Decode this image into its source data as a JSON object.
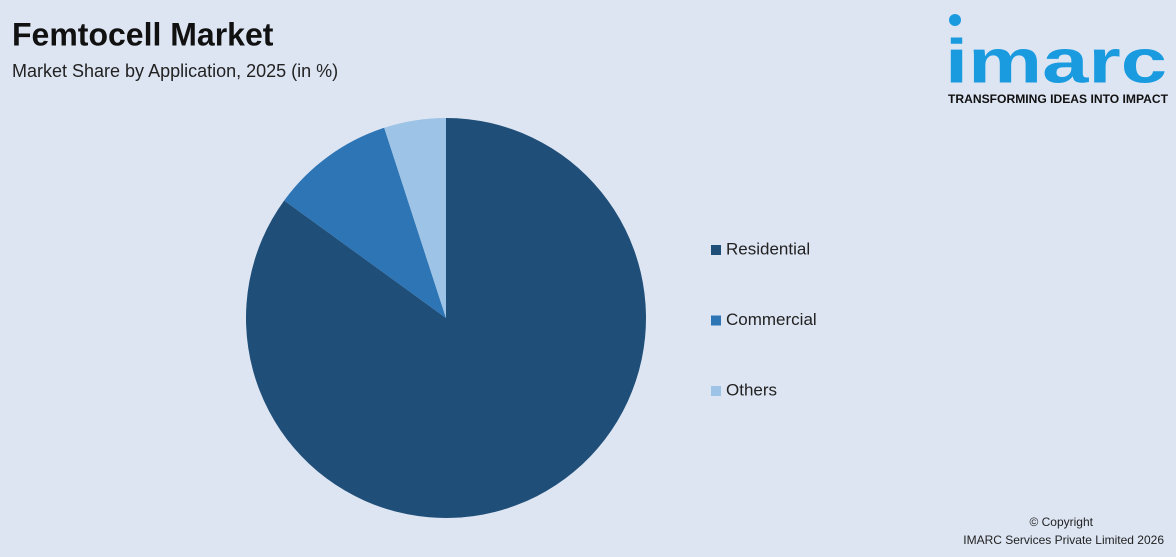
{
  "chart_data": {
    "type": "pie",
    "title": "Femtocell Market",
    "subtitle": "Market Share by Application, 2025 (in %)",
    "categories": [
      "Residential",
      "Commercial",
      "Others"
    ],
    "values": [
      85,
      10,
      5
    ],
    "colors": [
      "#1f4e79",
      "#2e75b6",
      "#9dc3e6"
    ],
    "legend": "right"
  },
  "logo": {
    "name": "imarc",
    "tagline": "TRANSFORMING IDEAS INTO IMPACT"
  },
  "footer": {
    "line1": "© Copyright",
    "line2": "IMARC Services Private Limited 2026"
  }
}
